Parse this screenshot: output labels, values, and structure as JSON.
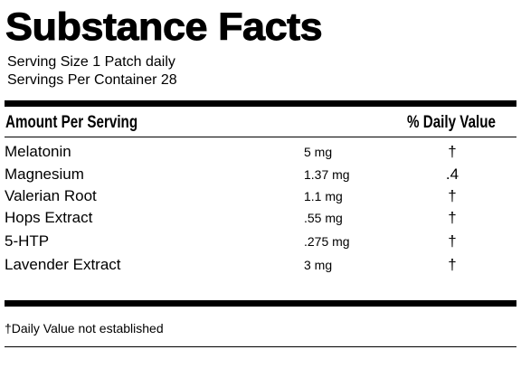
{
  "header": {
    "title": "Substance Facts",
    "serving_size": "Serving Size 1 Patch daily",
    "servings_per_container": "Servings Per Container 28"
  },
  "table": {
    "columns": [
      "Amount Per Serving",
      "% Daily Value"
    ],
    "rows": [
      [
        "Melatonin",
        "5 mg",
        "†"
      ],
      [
        "Magnesium",
        "1.37 mg",
        ".4"
      ],
      [
        "Valerian Root",
        "1.1 mg",
        "†"
      ],
      [
        "Hops Extract",
        ".55 mg",
        "†"
      ],
      [
        "5-HTP",
        ".275 mg",
        "†"
      ],
      [
        "Lavender Extract",
        "3 mg",
        "†"
      ]
    ]
  },
  "footnote": "†Daily Value not established"
}
